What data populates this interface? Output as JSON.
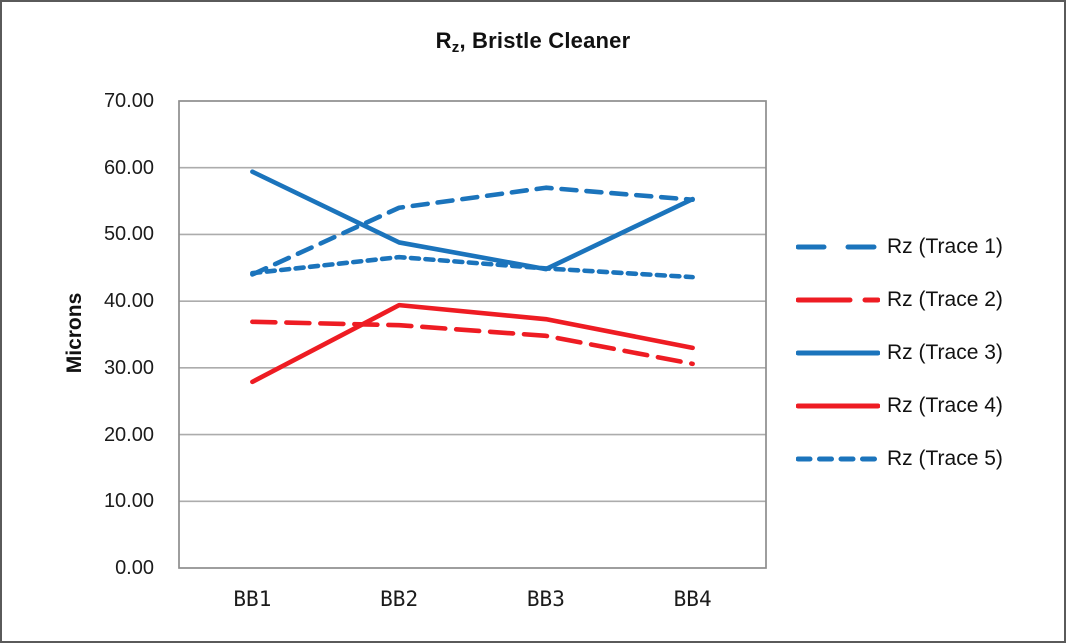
{
  "window": {
    "background": "#ffffff",
    "outer_border_color": "#5a5a5a"
  },
  "chart_data": {
    "type": "line",
    "title": {
      "prefix": "R",
      "subscript": "z",
      "suffix": ", Bristle Cleaner"
    },
    "title_plain": "Rz, Bristle Cleaner",
    "ylabel": "Microns",
    "xlabel": "",
    "categories": [
      "BB1",
      "BB2",
      "BB3",
      "BB4"
    ],
    "y_axis": {
      "min": 0,
      "max": 70,
      "step": 10,
      "tick_labels": [
        "70.00",
        "60.00",
        "50.00",
        "40.00",
        "30.00",
        "20.00",
        "10.00",
        "0.00"
      ]
    },
    "grid": true,
    "legend_position": "right",
    "colors": {
      "blue": "#1B74BC",
      "red": "#EE1C23",
      "gridline": "#ACACAC",
      "plot_border": "#8E8E8E"
    },
    "series": [
      {
        "name": "Rz (Trace 1)",
        "color": "#1B74BC",
        "line_style": "dash",
        "values": [
          44.0,
          54.0,
          57.0,
          55.2
        ]
      },
      {
        "name": "Rz (Trace 2)",
        "color": "#EE1C23",
        "line_style": "long-dash",
        "values": [
          36.9,
          36.4,
          34.8,
          30.6
        ]
      },
      {
        "name": "Rz (Trace 3)",
        "color": "#1B74BC",
        "line_style": "solid",
        "values": [
          59.4,
          48.8,
          44.8,
          55.3
        ]
      },
      {
        "name": "Rz (Trace 4)",
        "color": "#EE1C23",
        "line_style": "solid",
        "values": [
          27.9,
          39.4,
          37.3,
          33.0
        ]
      },
      {
        "name": "Rz (Trace 5)",
        "color": "#1B74BC",
        "line_style": "short-dash",
        "values": [
          44.2,
          46.6,
          44.9,
          43.6
        ]
      }
    ]
  }
}
